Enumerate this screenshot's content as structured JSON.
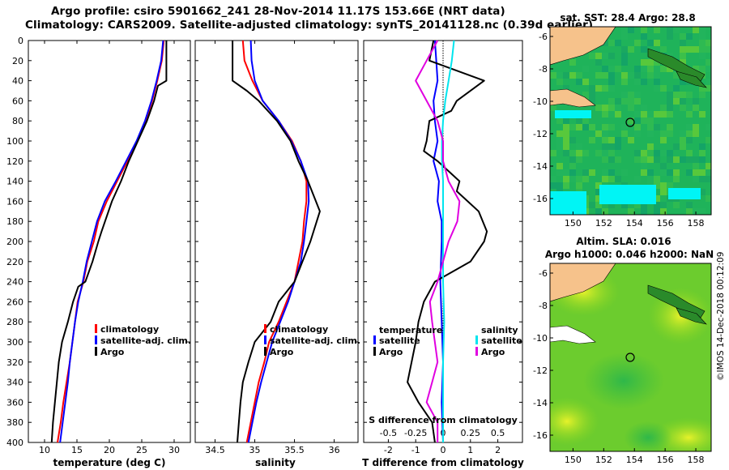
{
  "title": {
    "line1": "Argo profile: csiro 5901662_241 28-Nov-2014 11.17S 153.66E (NRT data)",
    "line2": "Climatology: CARS2009. Satellite-adjusted climatology: synTS_20141128.nc (0.39d earlier)"
  },
  "colors": {
    "climatology": "#ff0000",
    "satellite": "#0000ff",
    "argo": "#000000",
    "sat_salinity": "#00e5ee",
    "clim_salinity_diff": "#e000e0"
  },
  "depth_ticks": [
    "0",
    "20",
    "40",
    "60",
    "80",
    "100",
    "120",
    "140",
    "160",
    "180",
    "200",
    "220",
    "240",
    "260",
    "280",
    "300",
    "320",
    "340",
    "360",
    "380",
    "400"
  ],
  "legend": {
    "climatology": "climatology",
    "satellite": "satellite-adj. clim.",
    "argo": "Argo"
  },
  "legend_diff": {
    "temperature": "temperature",
    "salinity": "salinity",
    "satellite": "satellite",
    "argo": "Argo"
  },
  "map_top": {
    "title": "sat. SST: 28.4 Argo: 28.8",
    "lat_ticks": [
      "-6",
      "-8",
      "-10",
      "-12",
      "-14",
      "-16"
    ],
    "lon_ticks": [
      "150",
      "152",
      "154",
      "156",
      "158"
    ]
  },
  "map_bottom": {
    "title1": "Altim. SLA: 0.016",
    "title2": "Argo h1000: 0.046 h2000: NaN",
    "lat_ticks": [
      "-6",
      "-8",
      "-10",
      "-12",
      "-14",
      "-16"
    ],
    "lon_ticks": [
      "150",
      "152",
      "154",
      "156",
      "158"
    ]
  },
  "watermark": "©IMOS 14-Dec-2018 00:12:09",
  "chart_data": [
    {
      "type": "line",
      "name": "temperature",
      "xlabel": "temperature (deg C)",
      "ylabel": "depth",
      "xlim": [
        7.5,
        32.5
      ],
      "ylim": [
        400,
        0
      ],
      "x_ticks": [
        "10",
        "15",
        "20",
        "25",
        "30"
      ],
      "series": [
        {
          "name": "climatology",
          "depth": [
            0,
            20,
            40,
            60,
            80,
            100,
            120,
            140,
            160,
            180,
            200,
            220,
            240,
            260,
            280,
            300,
            320,
            340,
            360,
            380,
            400
          ],
          "values": [
            28.4,
            28.1,
            27.4,
            26.6,
            25.6,
            24.3,
            22.8,
            21.2,
            19.6,
            18.3,
            17.6,
            16.6,
            16.0,
            15.1,
            14.7,
            14.3,
            13.9,
            13.4,
            12.9,
            12.5,
            12.0
          ]
        },
        {
          "name": "satellite-adj. clim.",
          "depth": [
            0,
            20,
            40,
            60,
            80,
            100,
            120,
            140,
            160,
            180,
            200,
            220,
            240,
            260,
            280,
            300,
            320,
            340,
            360,
            380,
            400
          ],
          "values": [
            28.3,
            28.0,
            27.3,
            26.5,
            25.5,
            24.2,
            22.6,
            21.0,
            19.3,
            18.1,
            17.3,
            16.5,
            15.9,
            15.2,
            14.7,
            14.3,
            13.9,
            13.6,
            13.2,
            12.8,
            12.4
          ]
        },
        {
          "name": "Argo",
          "depth": [
            0,
            20,
            40,
            45,
            60,
            80,
            100,
            120,
            140,
            160,
            175,
            190,
            200,
            220,
            240,
            245,
            260,
            280,
            300,
            320,
            340,
            360,
            380,
            400
          ],
          "values": [
            28.8,
            28.8,
            28.8,
            27.5,
            26.9,
            25.8,
            24.4,
            23.0,
            21.8,
            20.4,
            19.6,
            18.8,
            18.3,
            17.4,
            16.3,
            15.2,
            14.4,
            13.6,
            12.7,
            12.2,
            11.9,
            11.6,
            11.3,
            11.1
          ]
        }
      ]
    },
    {
      "type": "line",
      "name": "salinity",
      "xlabel": "salinity",
      "ylabel": "depth",
      "xlim": [
        34.25,
        36.3
      ],
      "ylim": [
        400,
        0
      ],
      "x_ticks": [
        "34.5",
        "35",
        "35.5",
        "36"
      ],
      "series": [
        {
          "name": "climatology",
          "depth": [
            0,
            20,
            40,
            60,
            80,
            100,
            120,
            140,
            160,
            180,
            200,
            220,
            240,
            260,
            280,
            300,
            320,
            340,
            360,
            380,
            400
          ],
          "values": [
            34.85,
            34.87,
            34.97,
            35.1,
            35.3,
            35.47,
            35.58,
            35.65,
            35.65,
            35.62,
            35.6,
            35.55,
            35.5,
            35.4,
            35.3,
            35.18,
            35.12,
            35.05,
            35.0,
            34.95,
            34.9
          ]
        },
        {
          "name": "satellite-adj. clim.",
          "depth": [
            0,
            20,
            40,
            60,
            80,
            100,
            120,
            140,
            160,
            180,
            200,
            220,
            240,
            260,
            280,
            300,
            320,
            340,
            360,
            380,
            400
          ],
          "values": [
            34.95,
            34.96,
            35.0,
            35.1,
            35.3,
            35.46,
            35.58,
            35.67,
            35.68,
            35.65,
            35.62,
            35.58,
            35.5,
            35.42,
            35.32,
            35.22,
            35.15,
            35.08,
            35.02,
            34.97,
            34.92
          ]
        },
        {
          "name": "Argo",
          "depth": [
            0,
            20,
            40,
            50,
            60,
            80,
            100,
            120,
            140,
            160,
            170,
            180,
            200,
            220,
            240,
            260,
            280,
            300,
            320,
            340,
            360,
            380,
            400
          ],
          "values": [
            34.72,
            34.72,
            34.72,
            34.9,
            35.05,
            35.28,
            35.45,
            35.55,
            35.67,
            35.77,
            35.82,
            35.78,
            35.7,
            35.6,
            35.5,
            35.3,
            35.2,
            35.0,
            34.92,
            34.85,
            34.82,
            34.8,
            34.78
          ]
        }
      ]
    },
    {
      "type": "line",
      "name": "difference from climatology",
      "xlabel": "T difference from climatology",
      "x2label": "S difference from climatology",
      "ylabel": "depth",
      "xlim": [
        -2.9,
        2.9
      ],
      "x2lim": [
        -0.725,
        0.725
      ],
      "ylim": [
        400,
        0
      ],
      "x_ticks": [
        "-2",
        "-1",
        "0",
        "1",
        "2"
      ],
      "x2_ticks": [
        "-0.5",
        "-0.25",
        "0",
        "0.25",
        "0.5"
      ],
      "series": [
        {
          "name": "temperature satellite",
          "depth": [
            0,
            20,
            40,
            60,
            80,
            100,
            120,
            140,
            160,
            180,
            200,
            240,
            280,
            320,
            360,
            400
          ],
          "values": [
            -0.3,
            -0.25,
            -0.2,
            -0.35,
            -0.3,
            -0.2,
            -0.35,
            -0.15,
            -0.2,
            -0.05,
            -0.05,
            -0.1,
            -0.05,
            0.0,
            -0.05,
            0.0
          ]
        },
        {
          "name": "temperature Argo",
          "depth": [
            0,
            20,
            40,
            60,
            70,
            80,
            100,
            110,
            120,
            140,
            150,
            170,
            190,
            200,
            220,
            240,
            260,
            280,
            300,
            340,
            360,
            380,
            400
          ],
          "values": [
            -0.35,
            -0.5,
            1.5,
            0.5,
            0.3,
            -0.5,
            -0.6,
            -0.7,
            -0.2,
            0.6,
            0.5,
            1.3,
            1.6,
            1.5,
            1.0,
            -0.3,
            -0.7,
            -0.9,
            -1.0,
            -1.3,
            -0.9,
            -0.4,
            -0.3
          ]
        },
        {
          "name": "salinity satellite",
          "depth": [
            0,
            20,
            40,
            60,
            80,
            100,
            120,
            140,
            160,
            180,
            200,
            240,
            280,
            320,
            360,
            400
          ],
          "values": [
            0.1,
            0.08,
            0.05,
            0.02,
            0.0,
            -0.01,
            -0.01,
            0.0,
            0.0,
            0.0,
            0.0,
            0.0,
            0.01,
            0.0,
            0.0,
            0.0
          ]
        },
        {
          "name": "salinity Argo",
          "depth": [
            0,
            20,
            40,
            60,
            80,
            100,
            120,
            140,
            160,
            180,
            200,
            240,
            260,
            280,
            320,
            340,
            360,
            380,
            400
          ],
          "values": [
            -0.05,
            -0.15,
            -0.25,
            -0.15,
            -0.05,
            0.0,
            0.0,
            0.05,
            0.15,
            0.13,
            0.05,
            -0.05,
            -0.12,
            -0.1,
            -0.05,
            -0.1,
            -0.15,
            -0.05,
            -0.05
          ]
        }
      ]
    }
  ]
}
